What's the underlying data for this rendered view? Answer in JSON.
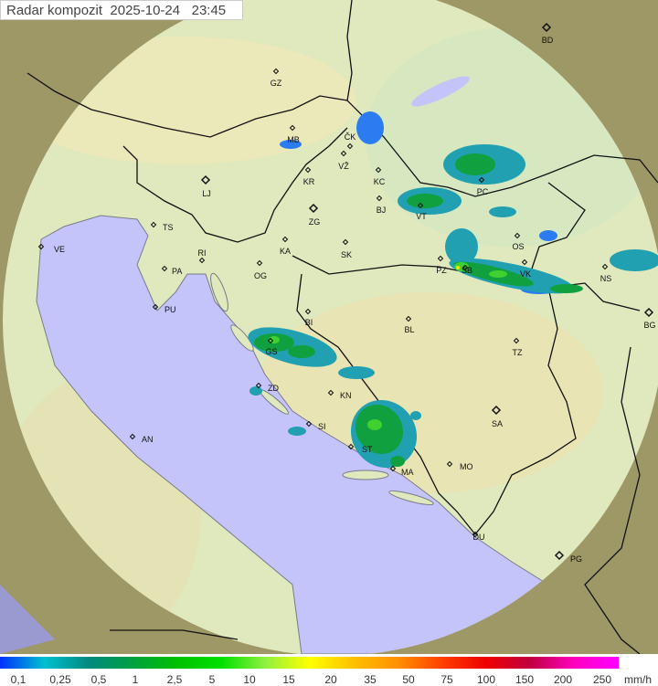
{
  "title": "Radar kompozit  2025-10-24   23:45",
  "colors": {
    "sea": "#c4c4fa",
    "land_coverage": "#dfe9bd",
    "outside_coverage": "#9e9766",
    "border": "#111111",
    "coast": "#7a7a8a"
  },
  "cities": [
    "GZ",
    "BD",
    "MB",
    "ČK",
    "VŽ",
    "KR",
    "KC",
    "LJ",
    "BJ",
    "ZG",
    "VT",
    "PC",
    "TS",
    "VE",
    "KA",
    "SK",
    "OS",
    "RI",
    "PA",
    "OG",
    "PZ",
    "SB",
    "VK",
    "NS",
    "PU",
    "BI",
    "BL",
    "BG",
    "GS",
    "TZ",
    "ZD",
    "KN",
    "SA",
    "AN",
    "SI",
    "ST",
    "MO",
    "MA",
    "DU",
    "PG"
  ],
  "legend": {
    "unit": "mm/h",
    "labels": [
      "0,1",
      "0,25",
      "0,5",
      "1",
      "2,5",
      "5",
      "10",
      "15",
      "20",
      "35",
      "50",
      "75",
      "100",
      "150",
      "200",
      "250"
    ],
    "gradient_colors": [
      "#0030ff",
      "#00c0d0",
      "#008a80",
      "#00a040",
      "#00c000",
      "#00e000",
      "#90f040",
      "#ffff00",
      "#ffc000",
      "#ff9000",
      "#ff4000",
      "#ee0000",
      "#c00040",
      "#ff00c0",
      "#ff00ff"
    ]
  }
}
